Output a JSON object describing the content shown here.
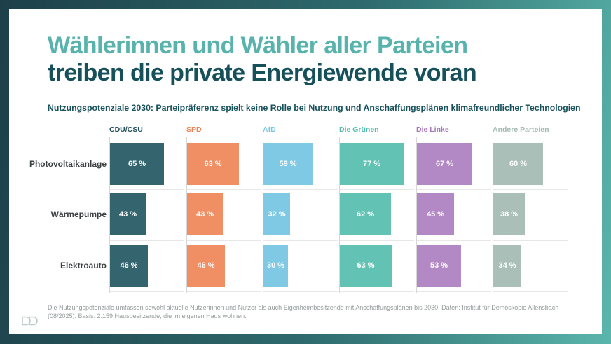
{
  "frame": {
    "gradient_start": "#1d3f49",
    "gradient_end": "#5ab6ad"
  },
  "title": {
    "line1": "Wählerinnen und Wähler aller Parteien",
    "line2": "treiben die private Energiewende voran",
    "line1_color": "#57b3ab",
    "line2_color": "#15505b"
  },
  "subtitle": {
    "text": "Nutzungspotenziale 2030: Parteipräferenz spielt keine Rolle bei Nutzung und Anschaffungsplänen klimafreundlicher Technologien",
    "color": "#17525c"
  },
  "chart_data": {
    "type": "bar",
    "orientation": "horizontal",
    "grouping": "columns per party, rows per technology",
    "categories": [
      "Photovoltaikanlage",
      "Wärmepumpe",
      "Elektroauto"
    ],
    "series": [
      {
        "name": "CDU/CSU",
        "color": "#34656f",
        "label_color": "#24505c",
        "values": [
          65,
          43,
          46
        ]
      },
      {
        "name": "SPD",
        "color": "#f08e64",
        "label_color": "#ec8256",
        "values": [
          63,
          43,
          46
        ]
      },
      {
        "name": "AfD",
        "color": "#7fc9e4",
        "label_color": "#7cc6e2",
        "values": [
          59,
          32,
          30
        ]
      },
      {
        "name": "Die Grünen",
        "color": "#62c3b4",
        "label_color": "#57bdb0",
        "values": [
          77,
          62,
          63
        ]
      },
      {
        "name": "Die Linke",
        "color": "#b288c5",
        "label_color": "#a874bd",
        "values": [
          67,
          45,
          53
        ]
      },
      {
        "name": "Andere Parteien",
        "color": "#a9bfb8",
        "label_color": "#a3bab3",
        "values": [
          60,
          38,
          34
        ]
      }
    ],
    "value_suffix": " %",
    "xlim": [
      0,
      100
    ],
    "grid": "light vertical baseline per column, light horizontal row separators"
  },
  "footer": {
    "note": "Die Nutzungspotenziale umfassen sowohl aktuelle Nutzerinnen und Nutzer als auch Eigenheimbesitzende mit Anschaffungsplänen bis 2030. Daten: Institut für Demoskopie Allensbach (08/2025). Basis: 2.159 Hausbesitzende, die im eigenen Haus wohnen."
  },
  "logo": {
    "name": "dd-logo",
    "color": "#bfcacb"
  }
}
